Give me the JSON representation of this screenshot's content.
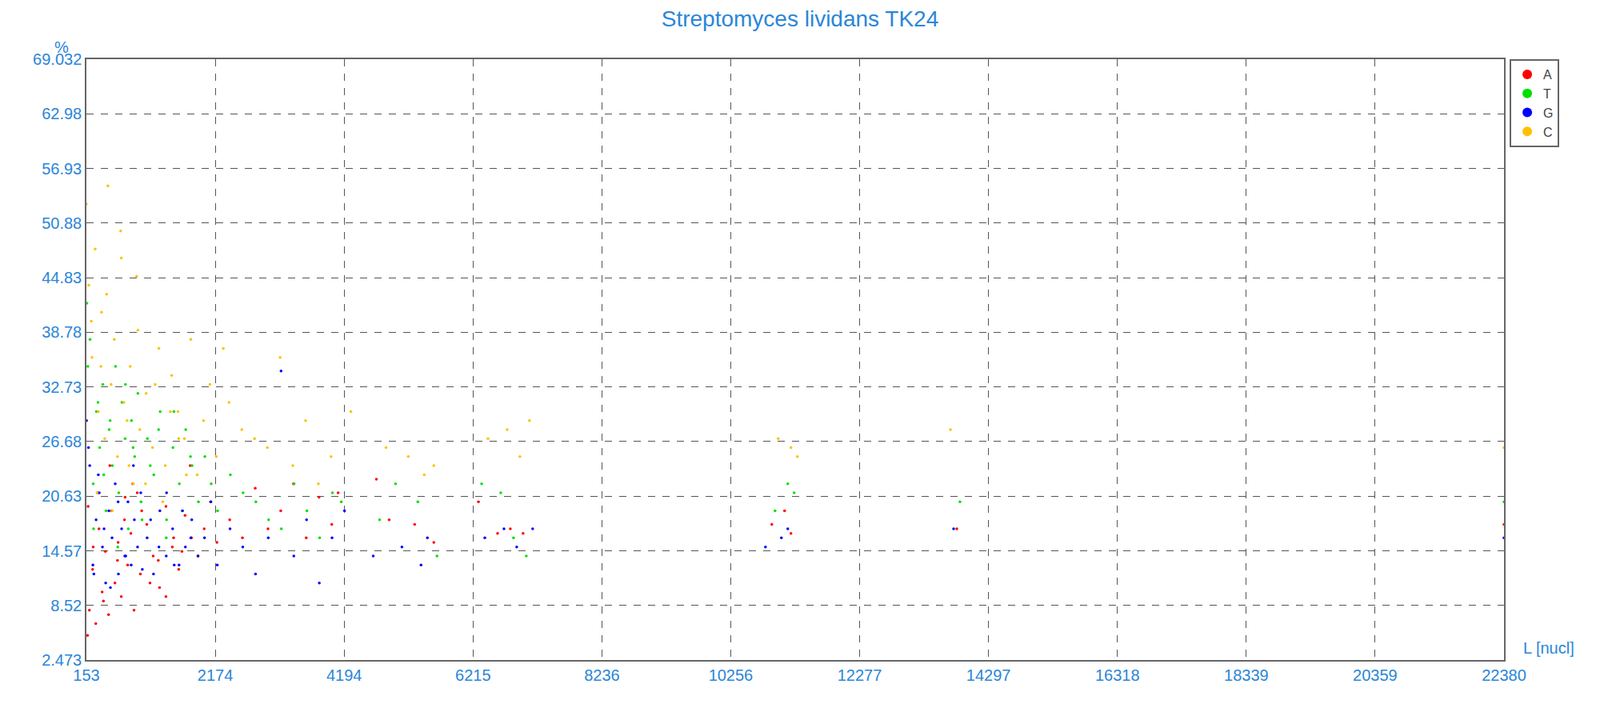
{
  "chart_data": {
    "type": "scatter",
    "title": "Streptomyces lividans TK24",
    "xlabel": "L [nucl]",
    "ylabel": "%",
    "xlim": [
      153,
      22380
    ],
    "ylim": [
      2.473,
      69.032
    ],
    "xticks": [
      153,
      2174,
      4194,
      6215,
      8236,
      10256,
      12277,
      14297,
      16318,
      18339,
      20359,
      22380
    ],
    "yticks": [
      2.473,
      8.52,
      14.57,
      20.63,
      26.68,
      32.73,
      38.78,
      44.83,
      50.88,
      56.93,
      62.98,
      69.032
    ],
    "grid": true,
    "legend": "top right",
    "marker": "dot",
    "series": [
      {
        "name": "A",
        "color": "#ff0000",
        "x": [
          170,
          200,
          250,
          300,
          350,
          400,
          450,
          500,
          550,
          600,
          650,
          700,
          750,
          800,
          850,
          900,
          950,
          1000,
          1100,
          1200,
          1300,
          1400,
          1500,
          1600,
          1700,
          1800,
          1900,
          2000,
          2100,
          2200,
          2400,
          2600,
          2800,
          3000,
          3200,
          3400,
          3600,
          3800,
          4000,
          4100,
          4700,
          4900,
          5300,
          5600,
          6300,
          6600,
          6800,
          7000,
          10900,
          11100,
          11200,
          13800,
          22380,
          180,
          260,
          330,
          420,
          520,
          640,
          760,
          880,
          1020,
          1150,
          1280,
          1400,
          1520,
          1650,
          1780
        ],
        "values": [
          5.2,
          8.0,
          12.5,
          6.5,
          17.0,
          10.0,
          14.5,
          7.5,
          19.0,
          11.0,
          15.5,
          9.5,
          18.0,
          13.0,
          16.5,
          8.0,
          21.0,
          12.0,
          17.5,
          14.0,
          10.5,
          19.5,
          15.0,
          12.5,
          18.5,
          16.0,
          14.0,
          17.0,
          20.0,
          15.5,
          18.0,
          16.0,
          21.5,
          17.0,
          19.0,
          22.0,
          16.0,
          20.5,
          17.5,
          21.0,
          22.5,
          18.0,
          17.5,
          15.5,
          20.0,
          16.5,
          17.0,
          16.5,
          17.5,
          19.0,
          16.5,
          17.0,
          17.5,
          19.5,
          15.0,
          21.0,
          9.0,
          24.0,
          13.5,
          20.5,
          22.0,
          19.0,
          11.0,
          13.5,
          9.5,
          16.0,
          14.5,
          24.0
        ]
      },
      {
        "name": "T",
        "color": "#00e000",
        "x": [
          160,
          210,
          260,
          310,
          360,
          410,
          460,
          510,
          560,
          610,
          660,
          710,
          760,
          810,
          860,
          910,
          960,
          1010,
          1110,
          1210,
          1310,
          1410,
          1510,
          1610,
          1710,
          1810,
          1910,
          2010,
          2110,
          2210,
          2410,
          2610,
          2810,
          3010,
          3210,
          3410,
          3610,
          3810,
          4010,
          4150,
          4750,
          5000,
          5350,
          5650,
          6350,
          6650,
          6850,
          7050,
          10950,
          11150,
          11250,
          13850,
          22380,
          175,
          265,
          335,
          425,
          525,
          645,
          765,
          885,
          1025,
          1155,
          1285,
          1405,
          1525,
          1655,
          1785
        ],
        "values": [
          42,
          38,
          22,
          30,
          26,
          33,
          19,
          28,
          24,
          35,
          21,
          31,
          27,
          17,
          29,
          25,
          32,
          20,
          27,
          23,
          30,
          18,
          26,
          22,
          28,
          24,
          20,
          25,
          22,
          19,
          23,
          21,
          20,
          18,
          17,
          22,
          19,
          16,
          21,
          20,
          18,
          22,
          20,
          14,
          22,
          21,
          16,
          14,
          19,
          22,
          21,
          20,
          20,
          35,
          17,
          31,
          23,
          29,
          15,
          33,
          26,
          18,
          24,
          28,
          16,
          30,
          19,
          25
        ]
      },
      {
        "name": "G",
        "color": "#0000ff",
        "x": [
          155,
          205,
          255,
          305,
          355,
          405,
          455,
          505,
          555,
          605,
          655,
          705,
          755,
          805,
          855,
          905,
          955,
          1005,
          1105,
          1205,
          1305,
          1405,
          1505,
          1605,
          1705,
          1805,
          1905,
          2005,
          2105,
          2205,
          2405,
          2605,
          2805,
          3005,
          3205,
          3405,
          3605,
          3805,
          4005,
          4200,
          4650,
          5100,
          5400,
          5500,
          6400,
          6700,
          6900,
          7150,
          10800,
          11050,
          11150,
          13750,
          22380,
          185,
          270,
          340,
          430,
          530,
          650,
          770,
          890,
          1030,
          1160,
          1290,
          1410,
          1530,
          1660,
          1790
        ],
        "values": [
          29,
          24,
          13,
          18,
          21,
          15,
          11,
          19,
          16,
          22,
          12,
          17,
          14,
          20,
          13,
          18,
          15,
          21,
          16,
          12,
          19,
          14,
          17,
          13,
          15,
          18,
          14,
          16,
          20,
          13,
          17,
          15,
          12,
          16,
          34.5,
          14,
          18,
          11,
          16,
          19,
          14,
          15,
          13,
          16,
          16,
          17,
          15,
          17,
          15,
          16,
          17,
          17,
          16,
          26,
          12,
          23,
          17,
          10.5,
          20,
          14,
          24,
          12.5,
          18,
          15,
          21,
          13,
          19,
          16
        ]
      },
      {
        "name": "C",
        "color": "#ffc000",
        "x": [
          153,
          190,
          240,
          290,
          340,
          390,
          440,
          490,
          540,
          590,
          640,
          690,
          740,
          790,
          840,
          890,
          940,
          990,
          1090,
          1190,
          1290,
          1390,
          1490,
          1590,
          1690,
          1790,
          1890,
          1990,
          2090,
          2190,
          2390,
          2590,
          2790,
          2990,
          3190,
          3390,
          3590,
          3790,
          3990,
          4300,
          4850,
          5200,
          5450,
          5600,
          6450,
          6750,
          6950,
          7100,
          11000,
          11200,
          11300,
          13700,
          22380,
          230,
          320,
          380,
          470,
          560,
          700,
          820,
          960,
          1080,
          1230,
          1350,
          1470,
          1600,
          1720,
          2300
        ],
        "values": [
          53,
          44,
          36,
          48,
          30,
          41,
          27,
          55,
          33,
          38,
          25,
          50,
          31,
          29,
          35,
          22,
          45,
          28,
          32,
          26,
          37,
          24,
          34,
          30,
          27,
          38,
          23,
          29,
          33,
          25,
          31,
          28,
          27,
          26,
          36,
          24,
          29,
          22,
          25,
          30,
          26,
          25,
          23,
          24,
          27,
          28,
          25,
          29,
          27,
          26,
          25,
          28,
          26,
          40,
          21,
          35,
          43,
          19,
          47,
          24,
          39,
          22,
          33,
          20,
          30,
          27,
          23,
          37
        ]
      }
    ]
  }
}
